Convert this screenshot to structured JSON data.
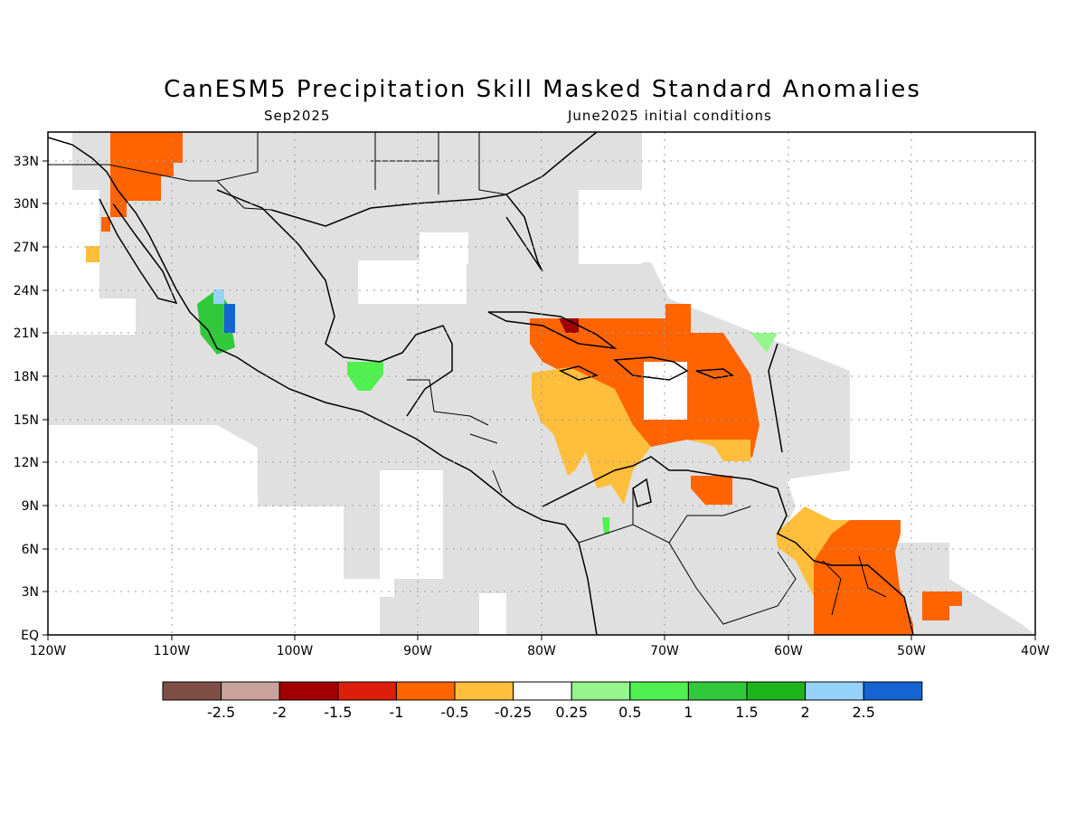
{
  "title": "CanESM5 Precipitation Skill Masked Standard Anomalies",
  "subtitle_left": "Sep2025",
  "subtitle_right": "June2025 initial conditions",
  "map": {
    "lon_range": [
      -120,
      -40
    ],
    "lat_range": [
      0,
      35
    ],
    "lon_labels": [
      "120W",
      "110W",
      "100W",
      "90W",
      "80W",
      "70W",
      "60W",
      "50W",
      "40W"
    ],
    "lat_labels": [
      "EQ",
      "3N",
      "6N",
      "9N",
      "12N",
      "15N",
      "18N",
      "21N",
      "24N",
      "27N",
      "30N",
      "33N"
    ],
    "masked_color": "#e0e0e0",
    "grid": "dotted"
  },
  "colorbar": {
    "colors": [
      "#7f4f46",
      "#c9a39a",
      "#a00000",
      "#dc1e0a",
      "#ff6400",
      "#ffbe3c",
      "#ffffff",
      "#96f58c",
      "#50f050",
      "#32c83c",
      "#1eb41e",
      "#96d2fa",
      "#1464d2"
    ],
    "labels": [
      "-2.5",
      "-2",
      "-1.5",
      "-1",
      "-0.5",
      "-0.25",
      "0.25",
      "0.5",
      "1",
      "1.5",
      "2",
      "2.5"
    ]
  },
  "anomaly_regions": [
    {
      "name": "nw-mexico-arizona",
      "level": "-1"
    },
    {
      "name": "baja-pacific",
      "level": "-1"
    },
    {
      "name": "west-mexico-coast",
      "level": "1"
    },
    {
      "name": "bay-of-campeche",
      "level": "0.5"
    },
    {
      "name": "caribbean-greater-antilles",
      "level": "-1"
    },
    {
      "name": "central-caribbean",
      "level": "-0.25"
    },
    {
      "name": "guianas",
      "level": "-1"
    },
    {
      "name": "lesser-antilles",
      "level": "0.25"
    }
  ]
}
